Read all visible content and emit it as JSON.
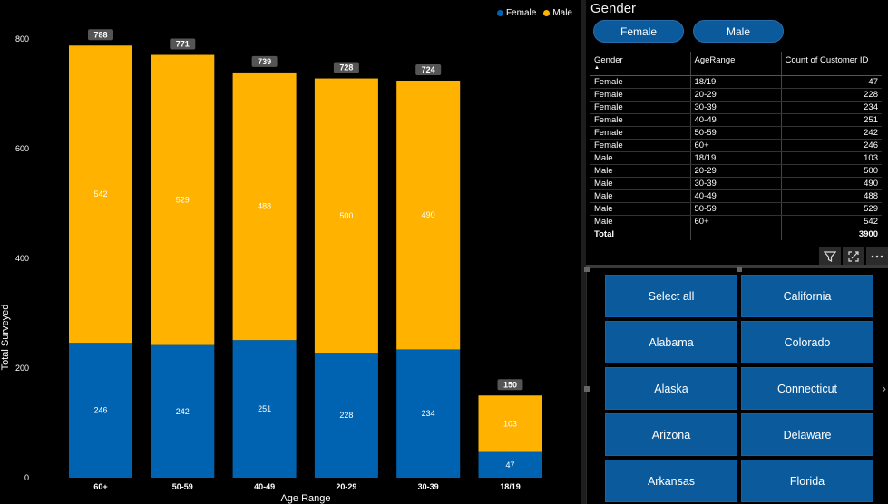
{
  "chart_data": {
    "type": "bar",
    "stacked": true,
    "categories": [
      "60+",
      "50-59",
      "40-49",
      "20-29",
      "30-39",
      "18/19"
    ],
    "series": [
      {
        "name": "Female",
        "color": "#0063b1",
        "values": [
          246,
          242,
          251,
          228,
          234,
          47
        ]
      },
      {
        "name": "Male",
        "color": "#ffb300",
        "values": [
          542,
          529,
          488,
          500,
          490,
          103
        ]
      }
    ],
    "totals": [
      788,
      771,
      739,
      728,
      724,
      150
    ],
    "xlabel": "Age Range",
    "ylabel": "Total Surveyed",
    "ylim": [
      0,
      800
    ],
    "yticks": [
      0,
      200,
      400,
      600,
      800
    ],
    "legend_position": "top-right",
    "grid": false
  },
  "gender_slicer": {
    "title": "Gender",
    "options": [
      "Female",
      "Male"
    ]
  },
  "table": {
    "headers": [
      "Gender",
      "AgeRange",
      "Count of Customer ID"
    ],
    "rows": [
      [
        "Female",
        "18/19",
        "47"
      ],
      [
        "Female",
        "20-29",
        "228"
      ],
      [
        "Female",
        "30-39",
        "234"
      ],
      [
        "Female",
        "40-49",
        "251"
      ],
      [
        "Female",
        "50-59",
        "242"
      ],
      [
        "Female",
        "60+",
        "246"
      ],
      [
        "Male",
        "18/19",
        "103"
      ],
      [
        "Male",
        "20-29",
        "500"
      ],
      [
        "Male",
        "30-39",
        "490"
      ],
      [
        "Male",
        "40-49",
        "488"
      ],
      [
        "Male",
        "50-59",
        "529"
      ],
      [
        "Male",
        "60+",
        "542"
      ]
    ],
    "total_label": "Total",
    "total_value": "3900"
  },
  "toolbar_icons": [
    "filter-icon",
    "focus-mode-icon",
    "more-options-icon"
  ],
  "state_slicer": {
    "items": [
      "Select all",
      "California",
      "Alabama",
      "Colorado",
      "Alaska",
      "Connecticut",
      "Arizona",
      "Delaware",
      "Arkansas",
      "Florida"
    ]
  }
}
